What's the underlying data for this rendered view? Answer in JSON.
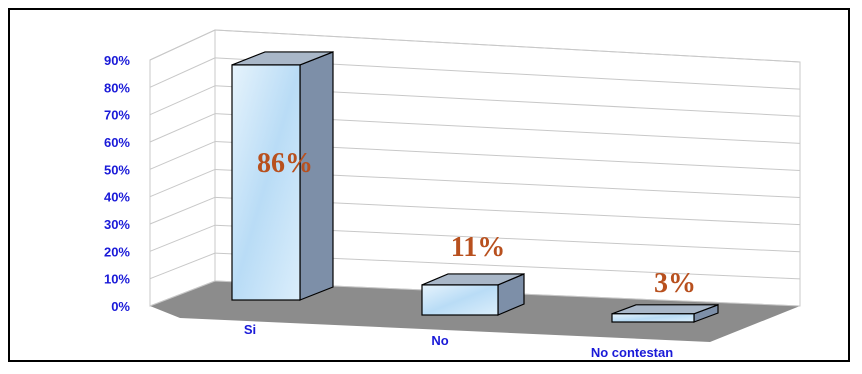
{
  "chart_data": {
    "type": "bar",
    "categories": [
      "Si",
      "No",
      "No contestan"
    ],
    "values": [
      86,
      11,
      3
    ],
    "data_labels": [
      "86%",
      "11%",
      "3%"
    ],
    "y_ticks": [
      "0%",
      "10%",
      "20%",
      "30%",
      "40%",
      "50%",
      "60%",
      "70%",
      "80%",
      "90%"
    ],
    "ylim": [
      0,
      90
    ],
    "grid": true,
    "legend": "none",
    "colors": {
      "bar_face": "#c6e2f7",
      "bar_side": "#7d8fa8",
      "bar_top": "#a9b7c8",
      "floor": "#8c8c8c",
      "tick_text": "#1a1ad8",
      "label_text": "#b8501e",
      "grid": "#c8c8c8"
    }
  }
}
